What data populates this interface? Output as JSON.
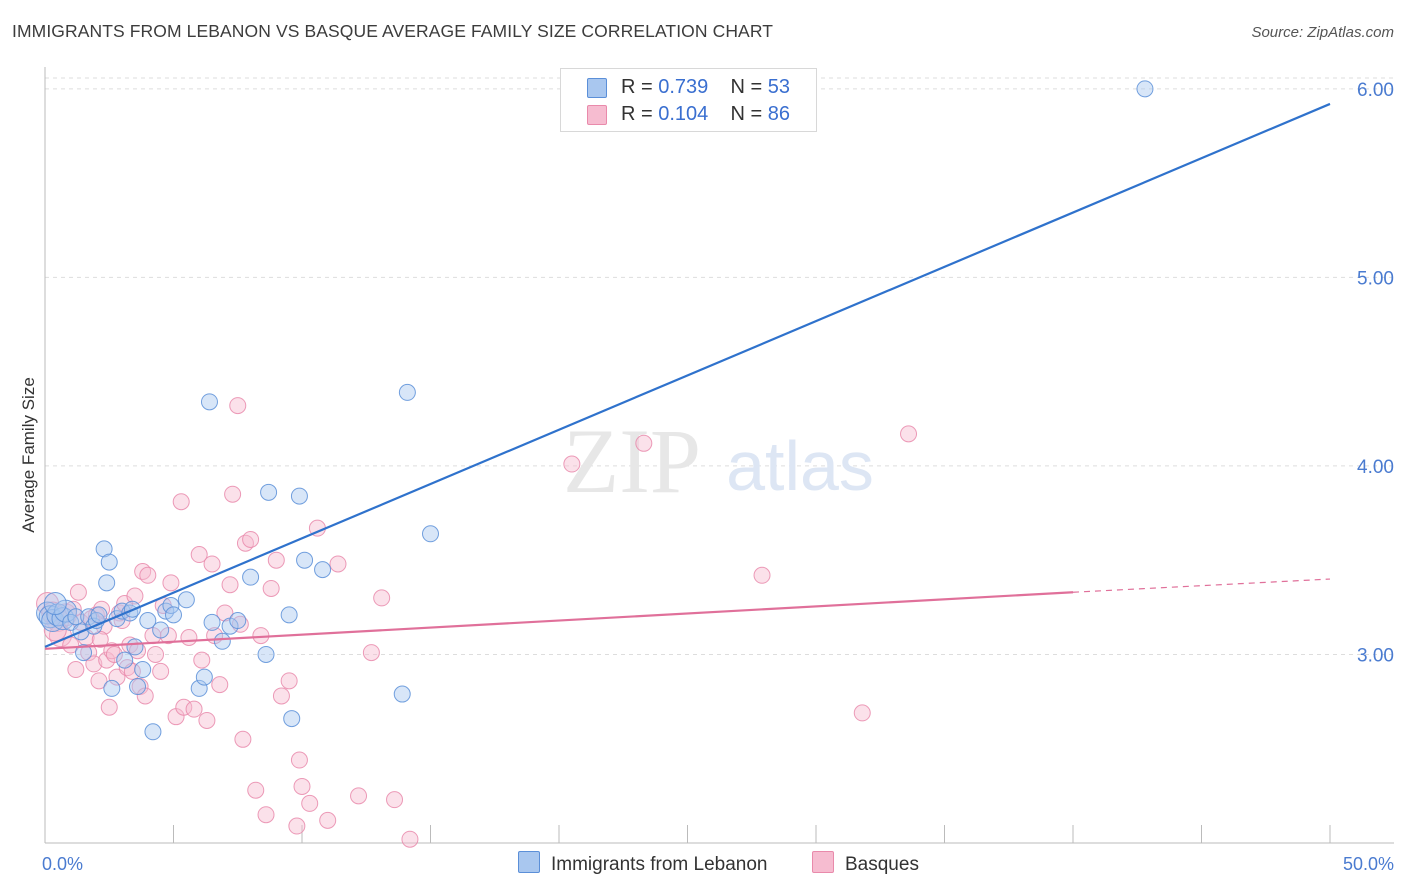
{
  "title": "IMMIGRANTS FROM LEBANON VS BASQUE AVERAGE FAMILY SIZE CORRELATION CHART",
  "source": "Source: ZipAtlas.com",
  "watermark": {
    "zip": "ZIP",
    "atlas": "atlas"
  },
  "legend": {
    "rows": [
      {
        "r_label": "R = ",
        "r_value": "0.739",
        "n_label": "N = ",
        "n_value": "53"
      },
      {
        "r_label": "R = ",
        "r_value": "0.104",
        "n_label": "N = ",
        "n_value": "86"
      }
    ]
  },
  "bottom_legend": [
    "Immigrants from Lebanon",
    "Basques"
  ],
  "colors": {
    "blue_fill": "#a9c7ef",
    "blue_stroke": "#5b8fd8",
    "blue_line": "#2f72cc",
    "pink_fill": "#f6bcd0",
    "pink_stroke": "#e98aab",
    "pink_line": "#e0709a",
    "tick_text": "#4a7bd0",
    "grid": "#dddddd"
  },
  "chart_data": {
    "type": "scatter",
    "title": "IMMIGRANTS FROM LEBANON VS BASQUE AVERAGE FAMILY SIZE CORRELATION CHART",
    "xlabel": "",
    "ylabel": "Average Family Size",
    "xlim": [
      0,
      50
    ],
    "ylim": [
      2.0,
      6.1
    ],
    "x_tick_labels": [
      "0.0%",
      "50.0%"
    ],
    "y_ticks": [
      3.0,
      4.0,
      5.0,
      6.0
    ],
    "y_tick_labels": [
      "3.00",
      "4.00",
      "5.00",
      "6.00"
    ],
    "grid": true,
    "legend_placement": "top-center",
    "series": [
      {
        "name": "Immigrants from Lebanon",
        "r": 0.739,
        "n": 53,
        "trend": {
          "x": [
            0,
            50
          ],
          "y": [
            3.04,
            5.92
          ]
        },
        "points": [
          [
            0.1,
            3.22
          ],
          [
            0.2,
            3.2
          ],
          [
            0.3,
            3.18
          ],
          [
            0.5,
            3.21
          ],
          [
            0.7,
            3.19
          ],
          [
            0.8,
            3.23
          ],
          [
            1.0,
            3.17
          ],
          [
            1.2,
            3.2
          ],
          [
            1.4,
            3.12
          ],
          [
            1.5,
            3.01
          ],
          [
            1.7,
            3.2
          ],
          [
            1.9,
            3.15
          ],
          [
            2.0,
            3.18
          ],
          [
            2.1,
            3.21
          ],
          [
            2.3,
            3.56
          ],
          [
            2.4,
            3.38
          ],
          [
            2.5,
            3.49
          ],
          [
            2.6,
            2.82
          ],
          [
            2.8,
            3.19
          ],
          [
            3.0,
            3.23
          ],
          [
            3.1,
            2.97
          ],
          [
            3.3,
            3.22
          ],
          [
            3.4,
            3.24
          ],
          [
            3.5,
            3.04
          ],
          [
            3.6,
            2.83
          ],
          [
            3.8,
            2.92
          ],
          [
            4.0,
            3.18
          ],
          [
            4.2,
            2.59
          ],
          [
            4.5,
            3.13
          ],
          [
            4.7,
            3.23
          ],
          [
            4.9,
            3.26
          ],
          [
            5.0,
            3.21
          ],
          [
            5.5,
            3.29
          ],
          [
            6.0,
            2.82
          ],
          [
            6.2,
            2.88
          ],
          [
            6.4,
            4.34
          ],
          [
            6.5,
            3.17
          ],
          [
            6.9,
            3.07
          ],
          [
            7.2,
            3.15
          ],
          [
            7.5,
            3.18
          ],
          [
            8.0,
            3.41
          ],
          [
            8.6,
            3.0
          ],
          [
            8.7,
            3.86
          ],
          [
            9.5,
            3.21
          ],
          [
            9.9,
            3.84
          ],
          [
            9.6,
            2.66
          ],
          [
            10.1,
            3.5
          ],
          [
            10.8,
            3.45
          ],
          [
            13.9,
            2.79
          ],
          [
            14.1,
            4.39
          ],
          [
            15.0,
            3.64
          ],
          [
            42.8,
            6.0
          ],
          [
            0.4,
            3.27
          ]
        ]
      },
      {
        "name": "Basques",
        "r": 0.104,
        "n": 86,
        "trend": {
          "x": [
            0,
            40
          ],
          "y": [
            3.03,
            3.33
          ]
        },
        "trend_dashed": {
          "x": [
            40,
            50
          ],
          "y": [
            3.33,
            3.4
          ]
        },
        "points": [
          [
            0.1,
            3.27
          ],
          [
            0.3,
            3.22
          ],
          [
            0.5,
            3.18
          ],
          [
            0.6,
            3.1
          ],
          [
            0.8,
            3.21
          ],
          [
            1.0,
            3.05
          ],
          [
            1.1,
            3.24
          ],
          [
            1.2,
            2.92
          ],
          [
            1.4,
            3.17
          ],
          [
            1.6,
            3.09
          ],
          [
            1.7,
            3.01
          ],
          [
            1.9,
            2.95
          ],
          [
            2.0,
            3.21
          ],
          [
            2.1,
            2.86
          ],
          [
            2.2,
            3.24
          ],
          [
            2.3,
            3.15
          ],
          [
            2.4,
            2.97
          ],
          [
            2.5,
            2.72
          ],
          [
            2.6,
            3.02
          ],
          [
            2.7,
            3.0
          ],
          [
            2.8,
            2.88
          ],
          [
            2.9,
            3.22
          ],
          [
            3.0,
            3.18
          ],
          [
            3.1,
            3.27
          ],
          [
            3.2,
            2.93
          ],
          [
            3.3,
            3.05
          ],
          [
            3.4,
            2.91
          ],
          [
            3.5,
            3.31
          ],
          [
            3.6,
            3.02
          ],
          [
            3.7,
            2.83
          ],
          [
            3.8,
            3.44
          ],
          [
            3.9,
            2.78
          ],
          [
            4.0,
            3.42
          ],
          [
            4.2,
            3.1
          ],
          [
            4.3,
            3.0
          ],
          [
            4.5,
            2.91
          ],
          [
            4.6,
            3.26
          ],
          [
            4.8,
            3.1
          ],
          [
            4.9,
            3.38
          ],
          [
            5.1,
            2.67
          ],
          [
            5.3,
            3.81
          ],
          [
            5.4,
            2.72
          ],
          [
            5.6,
            3.09
          ],
          [
            5.8,
            2.71
          ],
          [
            6.0,
            3.53
          ],
          [
            6.1,
            2.97
          ],
          [
            6.3,
            2.65
          ],
          [
            6.5,
            3.48
          ],
          [
            6.6,
            3.1
          ],
          [
            6.8,
            2.84
          ],
          [
            7.0,
            3.22
          ],
          [
            7.2,
            3.37
          ],
          [
            7.3,
            3.85
          ],
          [
            7.5,
            4.32
          ],
          [
            7.6,
            3.16
          ],
          [
            7.7,
            2.55
          ],
          [
            7.8,
            3.59
          ],
          [
            8.0,
            3.61
          ],
          [
            8.2,
            2.28
          ],
          [
            8.4,
            3.1
          ],
          [
            8.6,
            2.15
          ],
          [
            8.8,
            3.35
          ],
          [
            9.0,
            3.5
          ],
          [
            9.2,
            2.78
          ],
          [
            9.5,
            2.86
          ],
          [
            9.8,
            2.09
          ],
          [
            9.9,
            2.44
          ],
          [
            10.0,
            2.3
          ],
          [
            10.3,
            2.21
          ],
          [
            10.6,
            3.67
          ],
          [
            11.0,
            2.12
          ],
          [
            11.4,
            3.48
          ],
          [
            12.2,
            2.25
          ],
          [
            12.7,
            3.01
          ],
          [
            13.1,
            3.3
          ],
          [
            13.6,
            2.23
          ],
          [
            14.2,
            2.02
          ],
          [
            20.5,
            4.01
          ],
          [
            23.3,
            4.12
          ],
          [
            27.9,
            3.42
          ],
          [
            31.8,
            2.69
          ],
          [
            33.6,
            4.17
          ],
          [
            1.3,
            3.33
          ],
          [
            2.15,
            3.08
          ],
          [
            0.4,
            3.13
          ],
          [
            1.8,
            3.19
          ]
        ]
      }
    ]
  }
}
